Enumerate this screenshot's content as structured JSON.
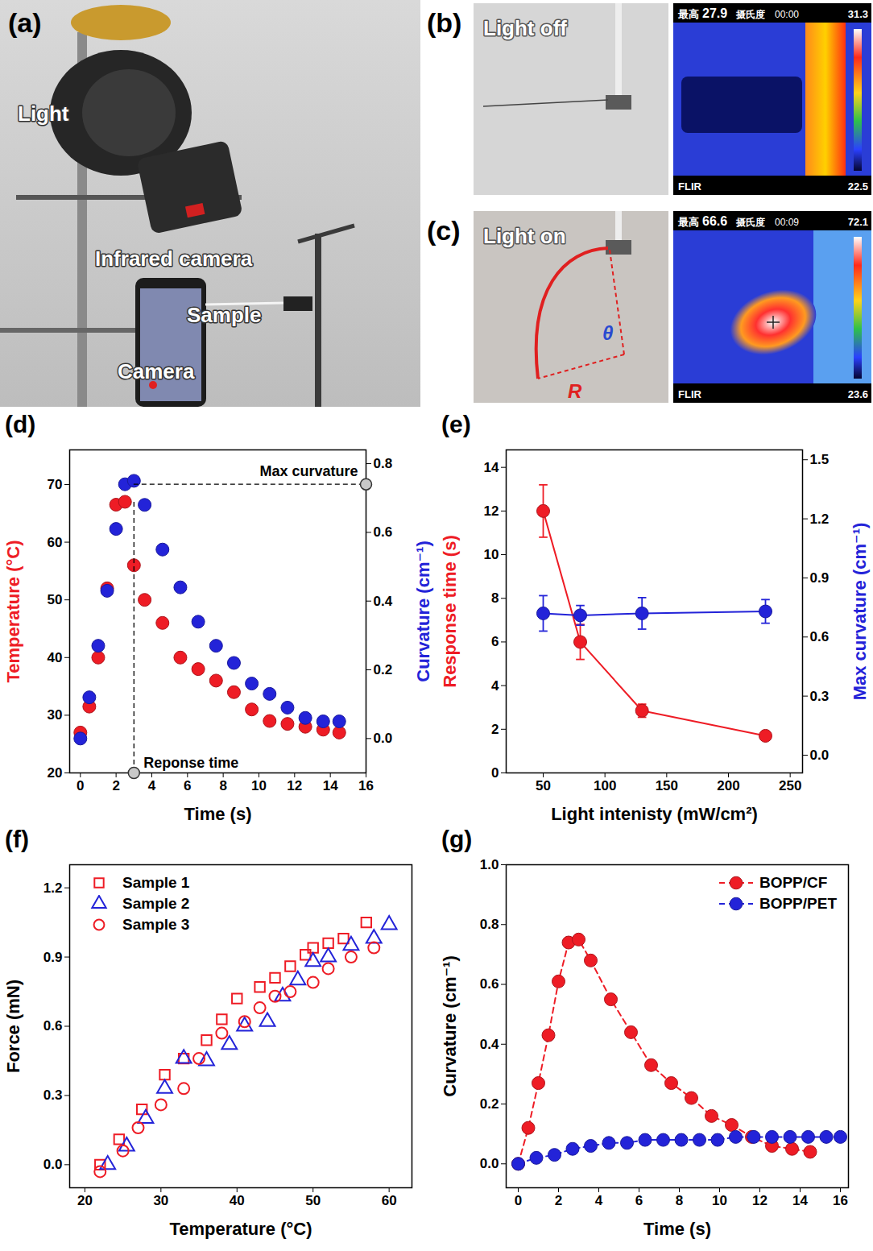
{
  "photo_panels": [
    {
      "panel_label": "(a)",
      "texts": [
        "Light",
        "Infrared camera",
        "Sample",
        "Camera"
      ]
    },
    {
      "panel_label": "(b)",
      "caption": "Light off",
      "thermal": {
        "max_label": "最高",
        "max": 27.9,
        "unit": "摄氏度",
        "time": "00:00",
        "scale_max": 31.3,
        "scale_min": 22.5,
        "brand": "FLIR"
      }
    },
    {
      "panel_label": "(c)",
      "caption": "Light on",
      "symbols": [
        "θ",
        "R"
      ],
      "thermal": {
        "max_label": "最高",
        "max": 66.6,
        "unit": "摄氏度",
        "time": "00:09",
        "scale_max": 72.1,
        "scale_min": 23.6,
        "brand": "FLIR"
      }
    }
  ],
  "chart_data": [
    {
      "panel_label": "(d)",
      "type": "scatter",
      "marker": "circle",
      "x_label": "Time (s)",
      "y_label": "Temperature (°C)",
      "y2_label": "Curvature (cm⁻¹)",
      "x": [
        0,
        0.5,
        1,
        1.5,
        2,
        2.5,
        3,
        3.6,
        4.6,
        5.6,
        6.6,
        7.6,
        8.6,
        9.6,
        10.6,
        11.6,
        12.6,
        13.6,
        14.5
      ],
      "series": [
        {
          "color": "#ee1c25",
          "values": [
            27,
            31.5,
            40,
            52,
            66.5,
            67,
            56,
            50,
            46,
            40,
            38,
            36,
            34,
            31,
            29,
            28.5,
            28,
            27.5,
            27
          ]
        },
        {
          "color": "#2323d8",
          "axis": "y2",
          "values": [
            0,
            0.12,
            0.27,
            0.43,
            0.61,
            0.74,
            0.75,
            0.68,
            0.55,
            0.44,
            0.34,
            0.27,
            0.22,
            0.16,
            0.13,
            0.09,
            0.06,
            0.05,
            0.05
          ]
        }
      ],
      "xlim": [
        -0.6,
        16
      ],
      "xticks": [
        0,
        2,
        4,
        6,
        8,
        10,
        12,
        14,
        16
      ],
      "ylim": [
        20,
        76
      ],
      "yticks": [
        20,
        30,
        40,
        50,
        60,
        70
      ],
      "y2lim": [
        -0.1,
        0.84
      ],
      "y2ticks": [
        {
          "value": 0,
          "label": "0.0"
        },
        {
          "value": 0.2,
          "label": "0.2"
        },
        {
          "value": 0.4,
          "label": "0.4"
        },
        {
          "value": 0.6,
          "label": "0.6"
        },
        {
          "value": 0.8,
          "label": "0.8"
        }
      ],
      "annotations": [
        {
          "text": "Max curvature",
          "x": 16,
          "y": 0.74,
          "axis": "y2"
        },
        {
          "text": "Reponse time",
          "x": 3,
          "y": 20
        }
      ]
    },
    {
      "panel_label": "(e)",
      "type": "line",
      "marker": "circle",
      "x_label": "Light intenisty (mW/cm²)",
      "y_label": "Response time (s)",
      "y2_label": "Max curvature (cm⁻¹)",
      "x": [
        50,
        80,
        130,
        230
      ],
      "series": [
        {
          "color": "#ee1c25",
          "values": [
            12,
            6,
            2.85,
            1.7
          ],
          "errors": [
            1.2,
            0.8,
            0.3,
            0.2
          ]
        },
        {
          "color": "#2323d8",
          "axis": "y2",
          "values": [
            0.72,
            0.71,
            0.72,
            0.73
          ],
          "errors": [
            0.09,
            0.05,
            0.08,
            0.06
          ]
        }
      ],
      "xlim": [
        20,
        260
      ],
      "xticks": [
        50,
        100,
        150,
        200,
        250
      ],
      "ylim": [
        0,
        14.8
      ],
      "yticks": [
        0,
        2,
        4,
        6,
        8,
        10,
        12,
        14
      ],
      "y2lim": [
        -0.09,
        1.55
      ],
      "y2ticks": [
        {
          "value": 0,
          "label": "0.0"
        },
        {
          "value": 0.3,
          "label": "0.3"
        },
        {
          "value": 0.6,
          "label": "0.6"
        },
        {
          "value": 0.9,
          "label": "0.9"
        },
        {
          "value": 1.2,
          "label": "1.2"
        },
        {
          "value": 1.5,
          "label": "1.5"
        }
      ]
    },
    {
      "panel_label": "(f)",
      "type": "scatter",
      "x_label": "Temperature (°C)",
      "y_label": "Force (mN)",
      "legend": "top-left",
      "series": [
        {
          "name": "Sample 1",
          "color": "#ee1c25",
          "marker": "open-square",
          "x": [
            22,
            24.5,
            27.5,
            30.5,
            33,
            36,
            38,
            40,
            43,
            45,
            47,
            49,
            50,
            52,
            54,
            57
          ],
          "values": [
            0,
            0.11,
            0.24,
            0.39,
            0.46,
            0.54,
            0.63,
            0.72,
            0.77,
            0.81,
            0.86,
            0.91,
            0.94,
            0.96,
            0.98,
            1.05
          ]
        },
        {
          "name": "Sample 2",
          "color": "#2323d8",
          "marker": "open-triangle",
          "x": [
            23,
            25.5,
            28,
            30.5,
            33,
            36,
            39,
            41,
            44,
            46,
            48,
            50,
            52,
            55,
            58,
            60
          ],
          "values": [
            0,
            0.08,
            0.2,
            0.33,
            0.46,
            0.45,
            0.52,
            0.6,
            0.62,
            0.73,
            0.8,
            0.88,
            0.9,
            0.95,
            0.98,
            1.04
          ]
        },
        {
          "name": "Sample 3",
          "color": "#ee1c25",
          "marker": "open-circle",
          "x": [
            22,
            25,
            27,
            30,
            33,
            35,
            38,
            41,
            43,
            45,
            47,
            50,
            52,
            55,
            58
          ],
          "values": [
            -0.03,
            0.06,
            0.16,
            0.26,
            0.33,
            0.46,
            0.57,
            0.62,
            0.68,
            0.73,
            0.75,
            0.79,
            0.85,
            0.9,
            0.94
          ]
        }
      ],
      "xlim": [
        18,
        63
      ],
      "xticks": [
        20,
        30,
        40,
        50,
        60
      ],
      "ylim": [
        -0.1,
        1.3
      ],
      "yticks": [
        {
          "value": 0,
          "label": "0.0"
        },
        {
          "value": 0.3,
          "label": "0.3"
        },
        {
          "value": 0.6,
          "label": "0.6"
        },
        {
          "value": 0.9,
          "label": "0.9"
        },
        {
          "value": 1.2,
          "label": "1.2"
        }
      ]
    },
    {
      "panel_label": "(g)",
      "type": "line",
      "marker": "circle",
      "line_style": "dashed",
      "x_label": "Time (s)",
      "y_label": "Curvature (cm⁻¹)",
      "legend": "top-right",
      "series": [
        {
          "name": "BOPP/CF",
          "color": "#ee1c25",
          "x": [
            0,
            0.5,
            1,
            1.5,
            2,
            2.5,
            3,
            3.6,
            4.6,
            5.6,
            6.6,
            7.6,
            8.6,
            9.6,
            10.6,
            11.6,
            12.6,
            13.6,
            14.5
          ],
          "values": [
            0,
            0.12,
            0.27,
            0.43,
            0.61,
            0.74,
            0.75,
            0.68,
            0.55,
            0.44,
            0.33,
            0.27,
            0.22,
            0.16,
            0.13,
            0.09,
            0.06,
            0.05,
            0.04
          ]
        },
        {
          "name": "BOPP/PET",
          "color": "#2323d8",
          "x": [
            0,
            0.9,
            1.8,
            2.7,
            3.6,
            4.5,
            5.4,
            6.3,
            7.2,
            8.1,
            9,
            9.9,
            10.8,
            11.7,
            12.6,
            13.5,
            14.4,
            15.3,
            16
          ],
          "values": [
            0,
            0.02,
            0.03,
            0.05,
            0.06,
            0.07,
            0.07,
            0.08,
            0.08,
            0.08,
            0.08,
            0.08,
            0.09,
            0.09,
            0.09,
            0.09,
            0.09,
            0.09,
            0.09
          ]
        }
      ],
      "xlim": [
        -0.6,
        16.4
      ],
      "xticks": [
        0,
        2,
        4,
        6,
        8,
        10,
        12,
        14,
        16
      ],
      "ylim": [
        -0.08,
        1.0
      ],
      "yticks": [
        {
          "value": 0,
          "label": "0.0"
        },
        {
          "value": 0.2,
          "label": "0.2"
        },
        {
          "value": 0.4,
          "label": "0.4"
        },
        {
          "value": 0.6,
          "label": "0.6"
        },
        {
          "value": 0.8,
          "label": "0.8"
        },
        {
          "value": 1.0,
          "label": "1.0"
        }
      ]
    }
  ]
}
